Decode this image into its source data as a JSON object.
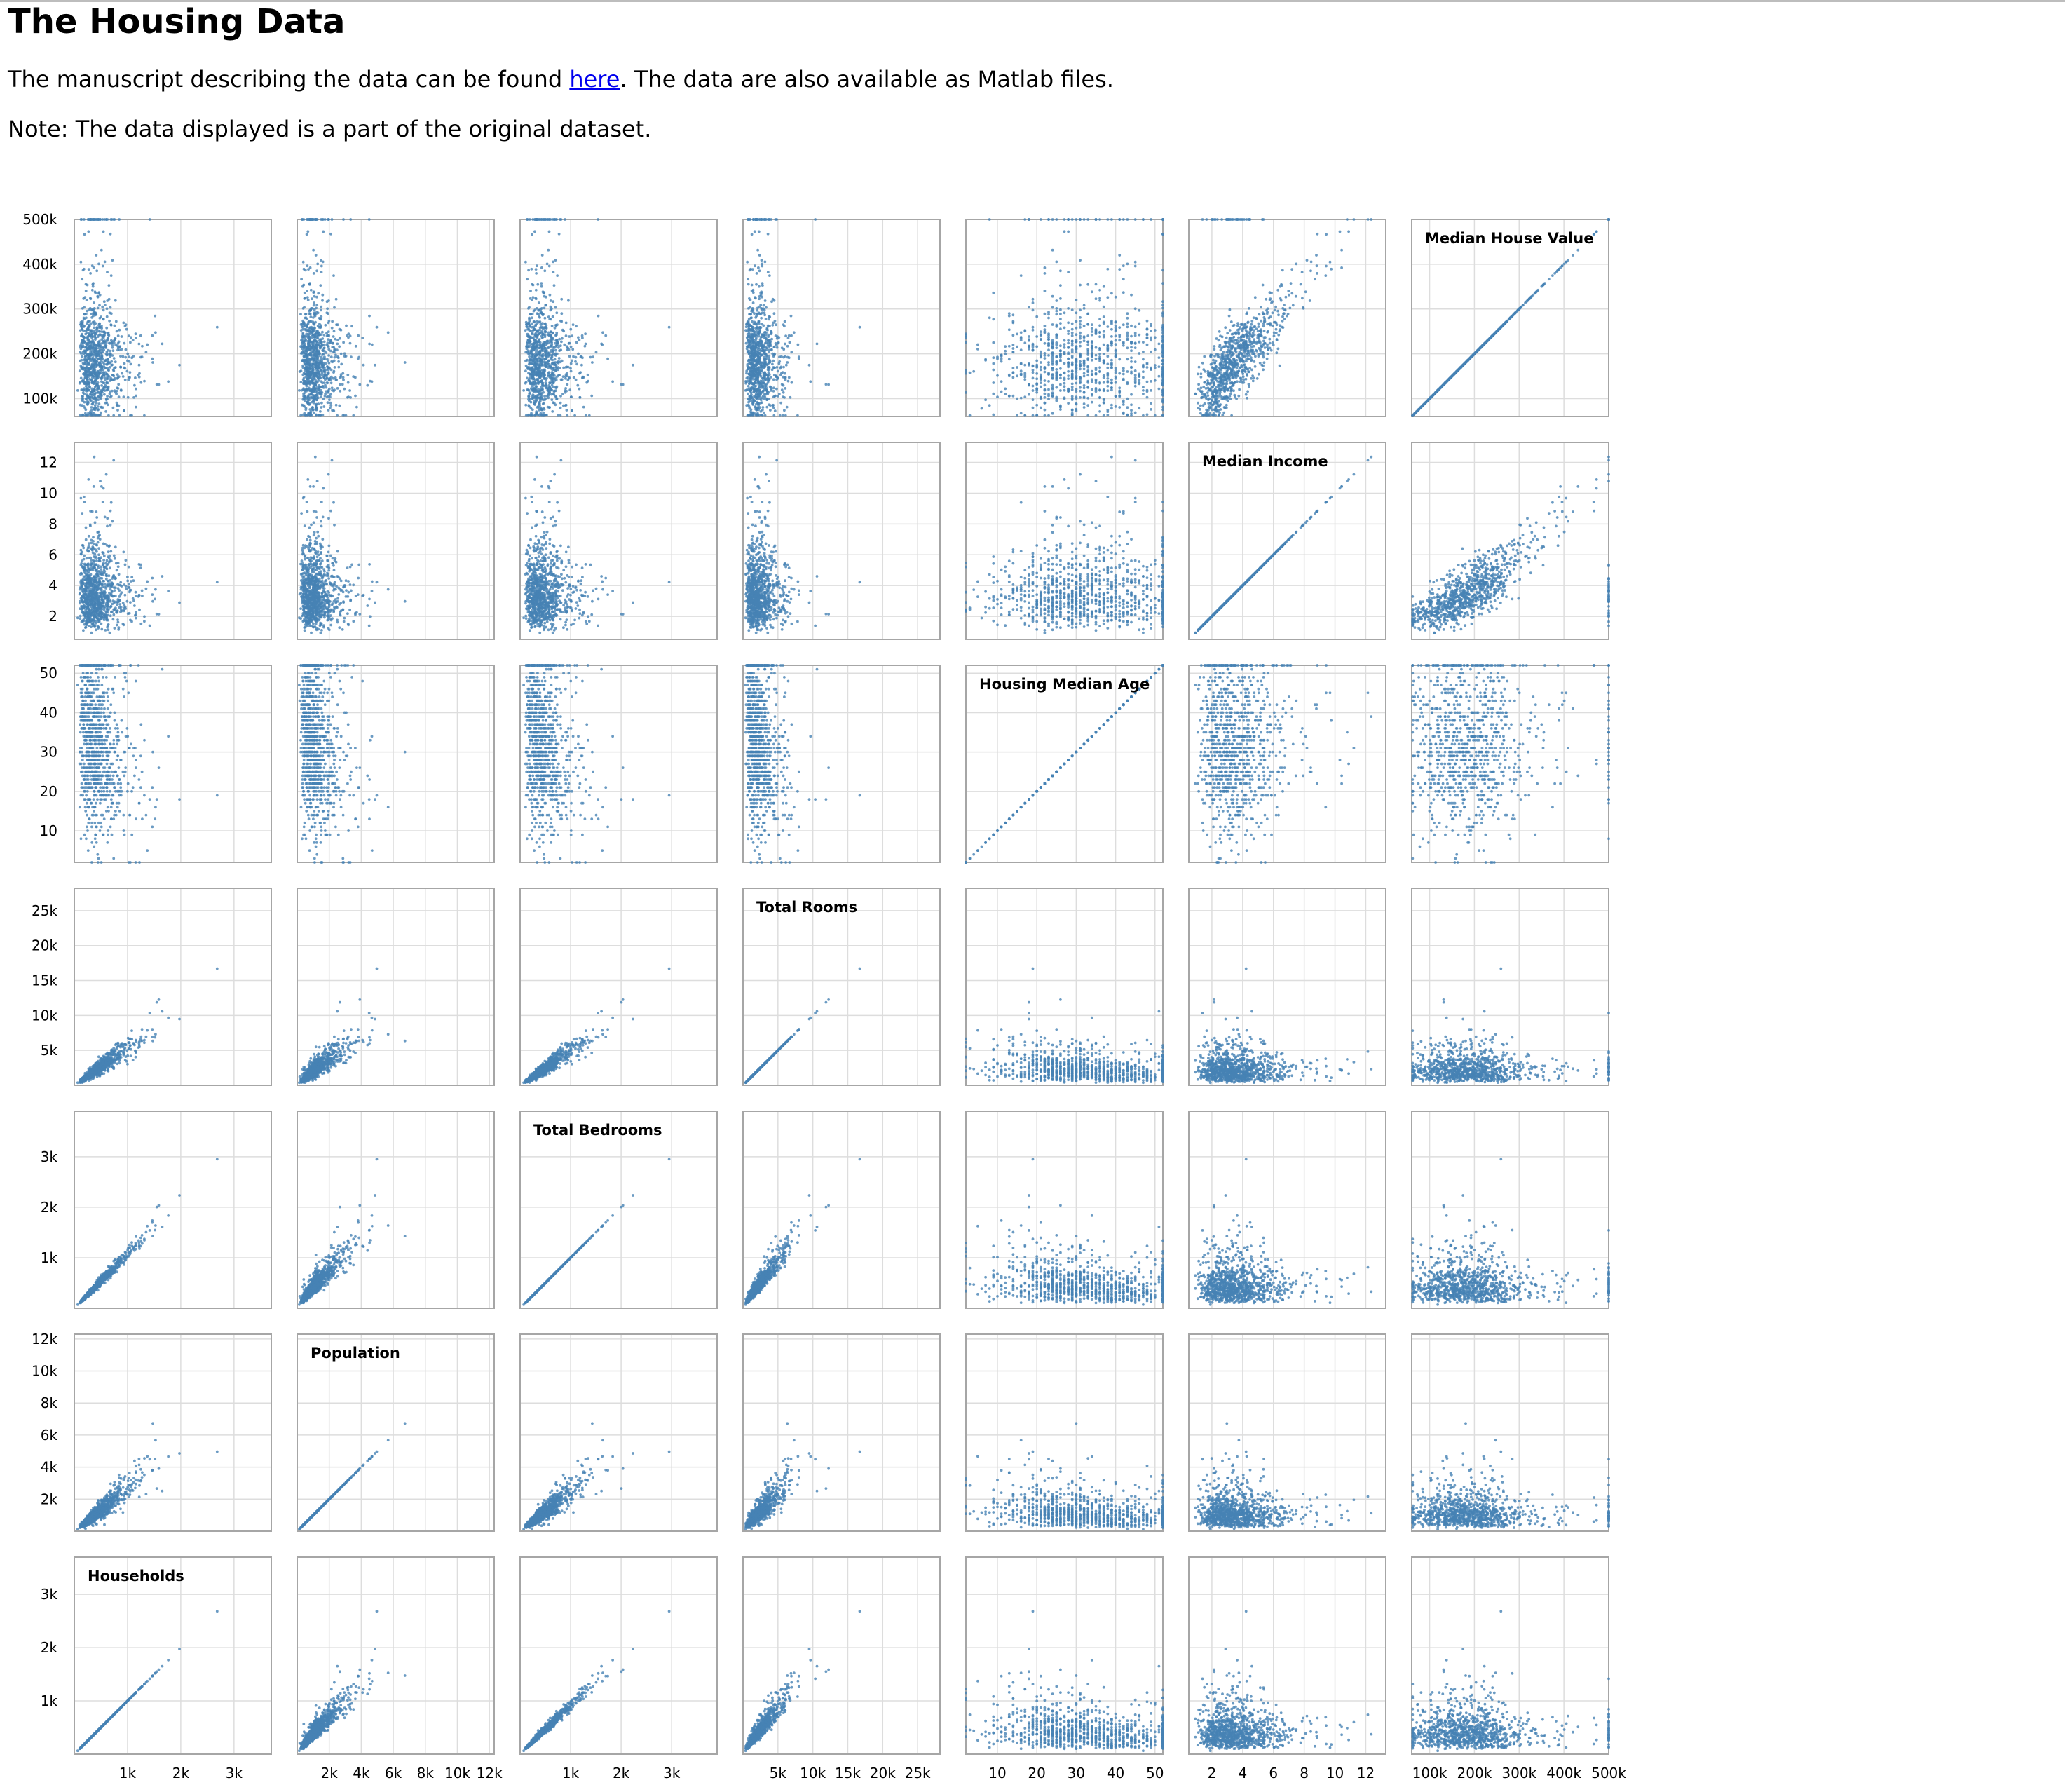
{
  "page": {
    "title": "The Housing Data",
    "intro_before_link": "The manuscript describing the data can be found ",
    "intro_link": "here",
    "intro_after_link": ". The data are also available as Matlab files.",
    "note": "Note: The data displayed is a part of the original dataset."
  },
  "colors": {
    "point": "#4682b4",
    "grid": "#dddddd",
    "frame": "#a6a6a6",
    "link": "#0000ee"
  },
  "chart_data": {
    "type": "scatter",
    "kind": "scatterplot-matrix",
    "title": "",
    "grid": true,
    "variables": [
      {
        "key": "households",
        "label": "Households",
        "domain": [
          0,
          3700
        ],
        "ticks": [
          {
            "value": 1000,
            "label": "1k"
          },
          {
            "value": 2000,
            "label": "2k"
          },
          {
            "value": 3000,
            "label": "3k"
          }
        ]
      },
      {
        "key": "population",
        "label": "Population",
        "domain": [
          0,
          12300
        ],
        "ticks": [
          {
            "value": 2000,
            "label": "2k"
          },
          {
            "value": 4000,
            "label": "4k"
          },
          {
            "value": 6000,
            "label": "6k"
          },
          {
            "value": 8000,
            "label": "8k"
          },
          {
            "value": 10000,
            "label": "10k"
          },
          {
            "value": 12000,
            "label": "12k"
          }
        ]
      },
      {
        "key": "total_bedrooms",
        "label": "Total Bedrooms",
        "domain": [
          0,
          3900
        ],
        "ticks": [
          {
            "value": 1000,
            "label": "1k"
          },
          {
            "value": 2000,
            "label": "2k"
          },
          {
            "value": 3000,
            "label": "3k"
          }
        ]
      },
      {
        "key": "total_rooms",
        "label": "Total Rooms",
        "domain": [
          0,
          28200
        ],
        "ticks": [
          {
            "value": 5000,
            "label": "5k"
          },
          {
            "value": 10000,
            "label": "10k"
          },
          {
            "value": 15000,
            "label": "15k"
          },
          {
            "value": 20000,
            "label": "20k"
          },
          {
            "value": 25000,
            "label": "25k"
          }
        ]
      },
      {
        "key": "housing_median_age",
        "label": "Housing Median Age",
        "domain": [
          2,
          52
        ],
        "ticks": [
          {
            "value": 10,
            "label": "10"
          },
          {
            "value": 20,
            "label": "20"
          },
          {
            "value": 30,
            "label": "30"
          },
          {
            "value": 40,
            "label": "40"
          },
          {
            "value": 50,
            "label": "50"
          }
        ]
      },
      {
        "key": "median_income",
        "label": "Median Income",
        "domain": [
          0.5,
          13.3
        ],
        "ticks": [
          {
            "value": 2,
            "label": "2"
          },
          {
            "value": 4,
            "label": "4"
          },
          {
            "value": 6,
            "label": "6"
          },
          {
            "value": 8,
            "label": "8"
          },
          {
            "value": 10,
            "label": "10"
          },
          {
            "value": 12,
            "label": "12"
          }
        ]
      },
      {
        "key": "median_house_value",
        "label": "Median House Value",
        "domain": [
          60000,
          500000
        ],
        "ticks": [
          {
            "value": 100000,
            "label": "100k"
          },
          {
            "value": 200000,
            "label": "200k"
          },
          {
            "value": 300000,
            "label": "300k"
          },
          {
            "value": 400000,
            "label": "400k"
          },
          {
            "value": 500000,
            "label": "500k"
          }
        ]
      }
    ],
    "row_order": [
      "median_house_value",
      "median_income",
      "housing_median_age",
      "total_rooms",
      "total_bedrooms",
      "population",
      "households"
    ],
    "column_order": [
      "households",
      "population",
      "total_bedrooms",
      "total_rooms",
      "housing_median_age",
      "median_income",
      "median_house_value"
    ],
    "approx_points": 1000,
    "point_cloud_summary": {
      "households": {
        "median": 420,
        "typical_range": [
          100,
          1200
        ]
      },
      "population": {
        "median": 1150,
        "typical_range": [
          300,
          3500
        ]
      },
      "total_bedrooms": {
        "median": 440,
        "typical_range": [
          100,
          1300
        ]
      },
      "total_rooms": {
        "median": 2100,
        "typical_range": [
          400,
          6500
        ]
      },
      "housing_median_age": {
        "median": 30,
        "typical_range": [
          5,
          52
        ],
        "capped_at": 52
      },
      "median_income": {
        "median": 3.5,
        "typical_range": [
          1,
          8
        ]
      },
      "median_house_value": {
        "median": 180000,
        "typical_range": [
          70000,
          500000
        ],
        "capped_at": 500001
      }
    }
  }
}
